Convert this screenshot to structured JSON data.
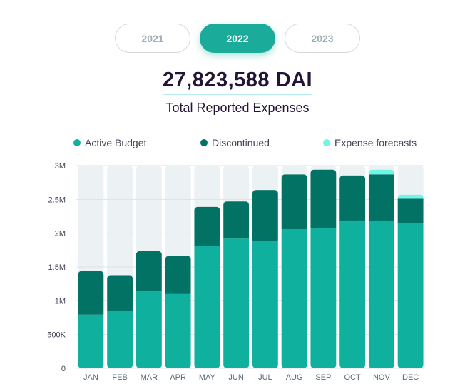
{
  "year_tabs": [
    {
      "label": "2021",
      "active": false
    },
    {
      "label": "2022",
      "active": true
    },
    {
      "label": "2023",
      "active": false
    }
  ],
  "summary": {
    "total_value": "27,823,588 DAI",
    "total_label": "Total Reported Expenses"
  },
  "colors": {
    "active_budget": "#10b09e",
    "discontinued": "#027265",
    "expense_forecasts": "#6cf8e6",
    "bar_background": "#ecf1f3",
    "grid": "#dde3e6"
  },
  "chart_data": {
    "type": "bar",
    "stacked": true,
    "title": "",
    "xlabel": "",
    "ylabel": "",
    "ylim": [
      0,
      3000000
    ],
    "yticks": [
      0,
      500000,
      1000000,
      1500000,
      2000000,
      2500000,
      3000000
    ],
    "ytick_labels": [
      "0",
      "500K",
      "1M",
      "1.5M",
      "2M",
      "2.5M",
      "3M"
    ],
    "grid": true,
    "legend_position": "top",
    "categories": [
      "JAN",
      "FEB",
      "MAR",
      "APR",
      "MAY",
      "JUN",
      "JUL",
      "AUG",
      "SEP",
      "OCT",
      "NOV",
      "DEC"
    ],
    "series": [
      {
        "name": "Active Budget",
        "key": "active_budget",
        "values": [
          795000,
          845000,
          1140000,
          1100000,
          1810000,
          1920000,
          1890000,
          2060000,
          2080000,
          2175000,
          2185000,
          2155000
        ]
      },
      {
        "name": "Discontinued",
        "key": "discontinued",
        "values": [
          645000,
          535000,
          595000,
          565000,
          580000,
          550000,
          750000,
          810000,
          860000,
          680000,
          685000,
          355000
        ]
      },
      {
        "name": "Expense forecasts",
        "key": "expense_forecasts",
        "values": [
          0,
          0,
          0,
          0,
          0,
          0,
          0,
          0,
          0,
          0,
          70000,
          60000
        ]
      }
    ]
  }
}
